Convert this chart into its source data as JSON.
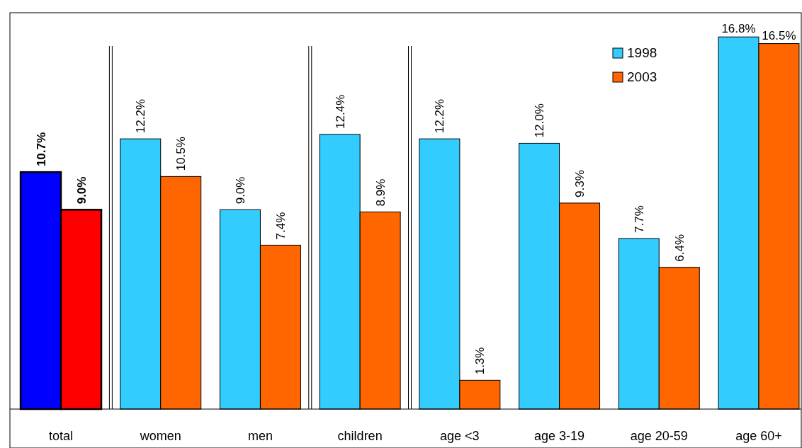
{
  "chart_data": {
    "type": "bar",
    "categories": [
      "total",
      "women",
      "men",
      "children",
      "age <3",
      "age 3-19",
      "age 20-59",
      "age 60+"
    ],
    "series": [
      {
        "name": "1998",
        "color": "#33ccff",
        "colors": [
          "#0000ff",
          "#33ccff",
          "#33ccff",
          "#33ccff",
          "#33ccff",
          "#33ccff",
          "#33ccff",
          "#33ccff"
        ],
        "values": [
          10.7,
          12.2,
          9.0,
          12.4,
          12.2,
          12.0,
          7.7,
          16.8
        ],
        "value_labels": [
          "10.7%",
          "12.2%",
          "9.0%",
          "12.4%",
          "12.2%",
          "12.0%",
          "7.7%",
          "16.8%"
        ]
      },
      {
        "name": "2003",
        "color": "#ff6600",
        "colors": [
          "#ff0000",
          "#ff6600",
          "#ff6600",
          "#ff6600",
          "#ff6600",
          "#ff6600",
          "#ff6600",
          "#ff6600"
        ],
        "values": [
          9.0,
          10.5,
          7.4,
          8.9,
          1.3,
          9.3,
          6.4,
          16.5
        ],
        "value_labels": [
          "9.0%",
          "10.5%",
          "7.4%",
          "8.9%",
          "1.3%",
          "9.3%",
          "6.4%",
          "16.5%"
        ]
      }
    ],
    "legend": "top right",
    "grid": false
  }
}
